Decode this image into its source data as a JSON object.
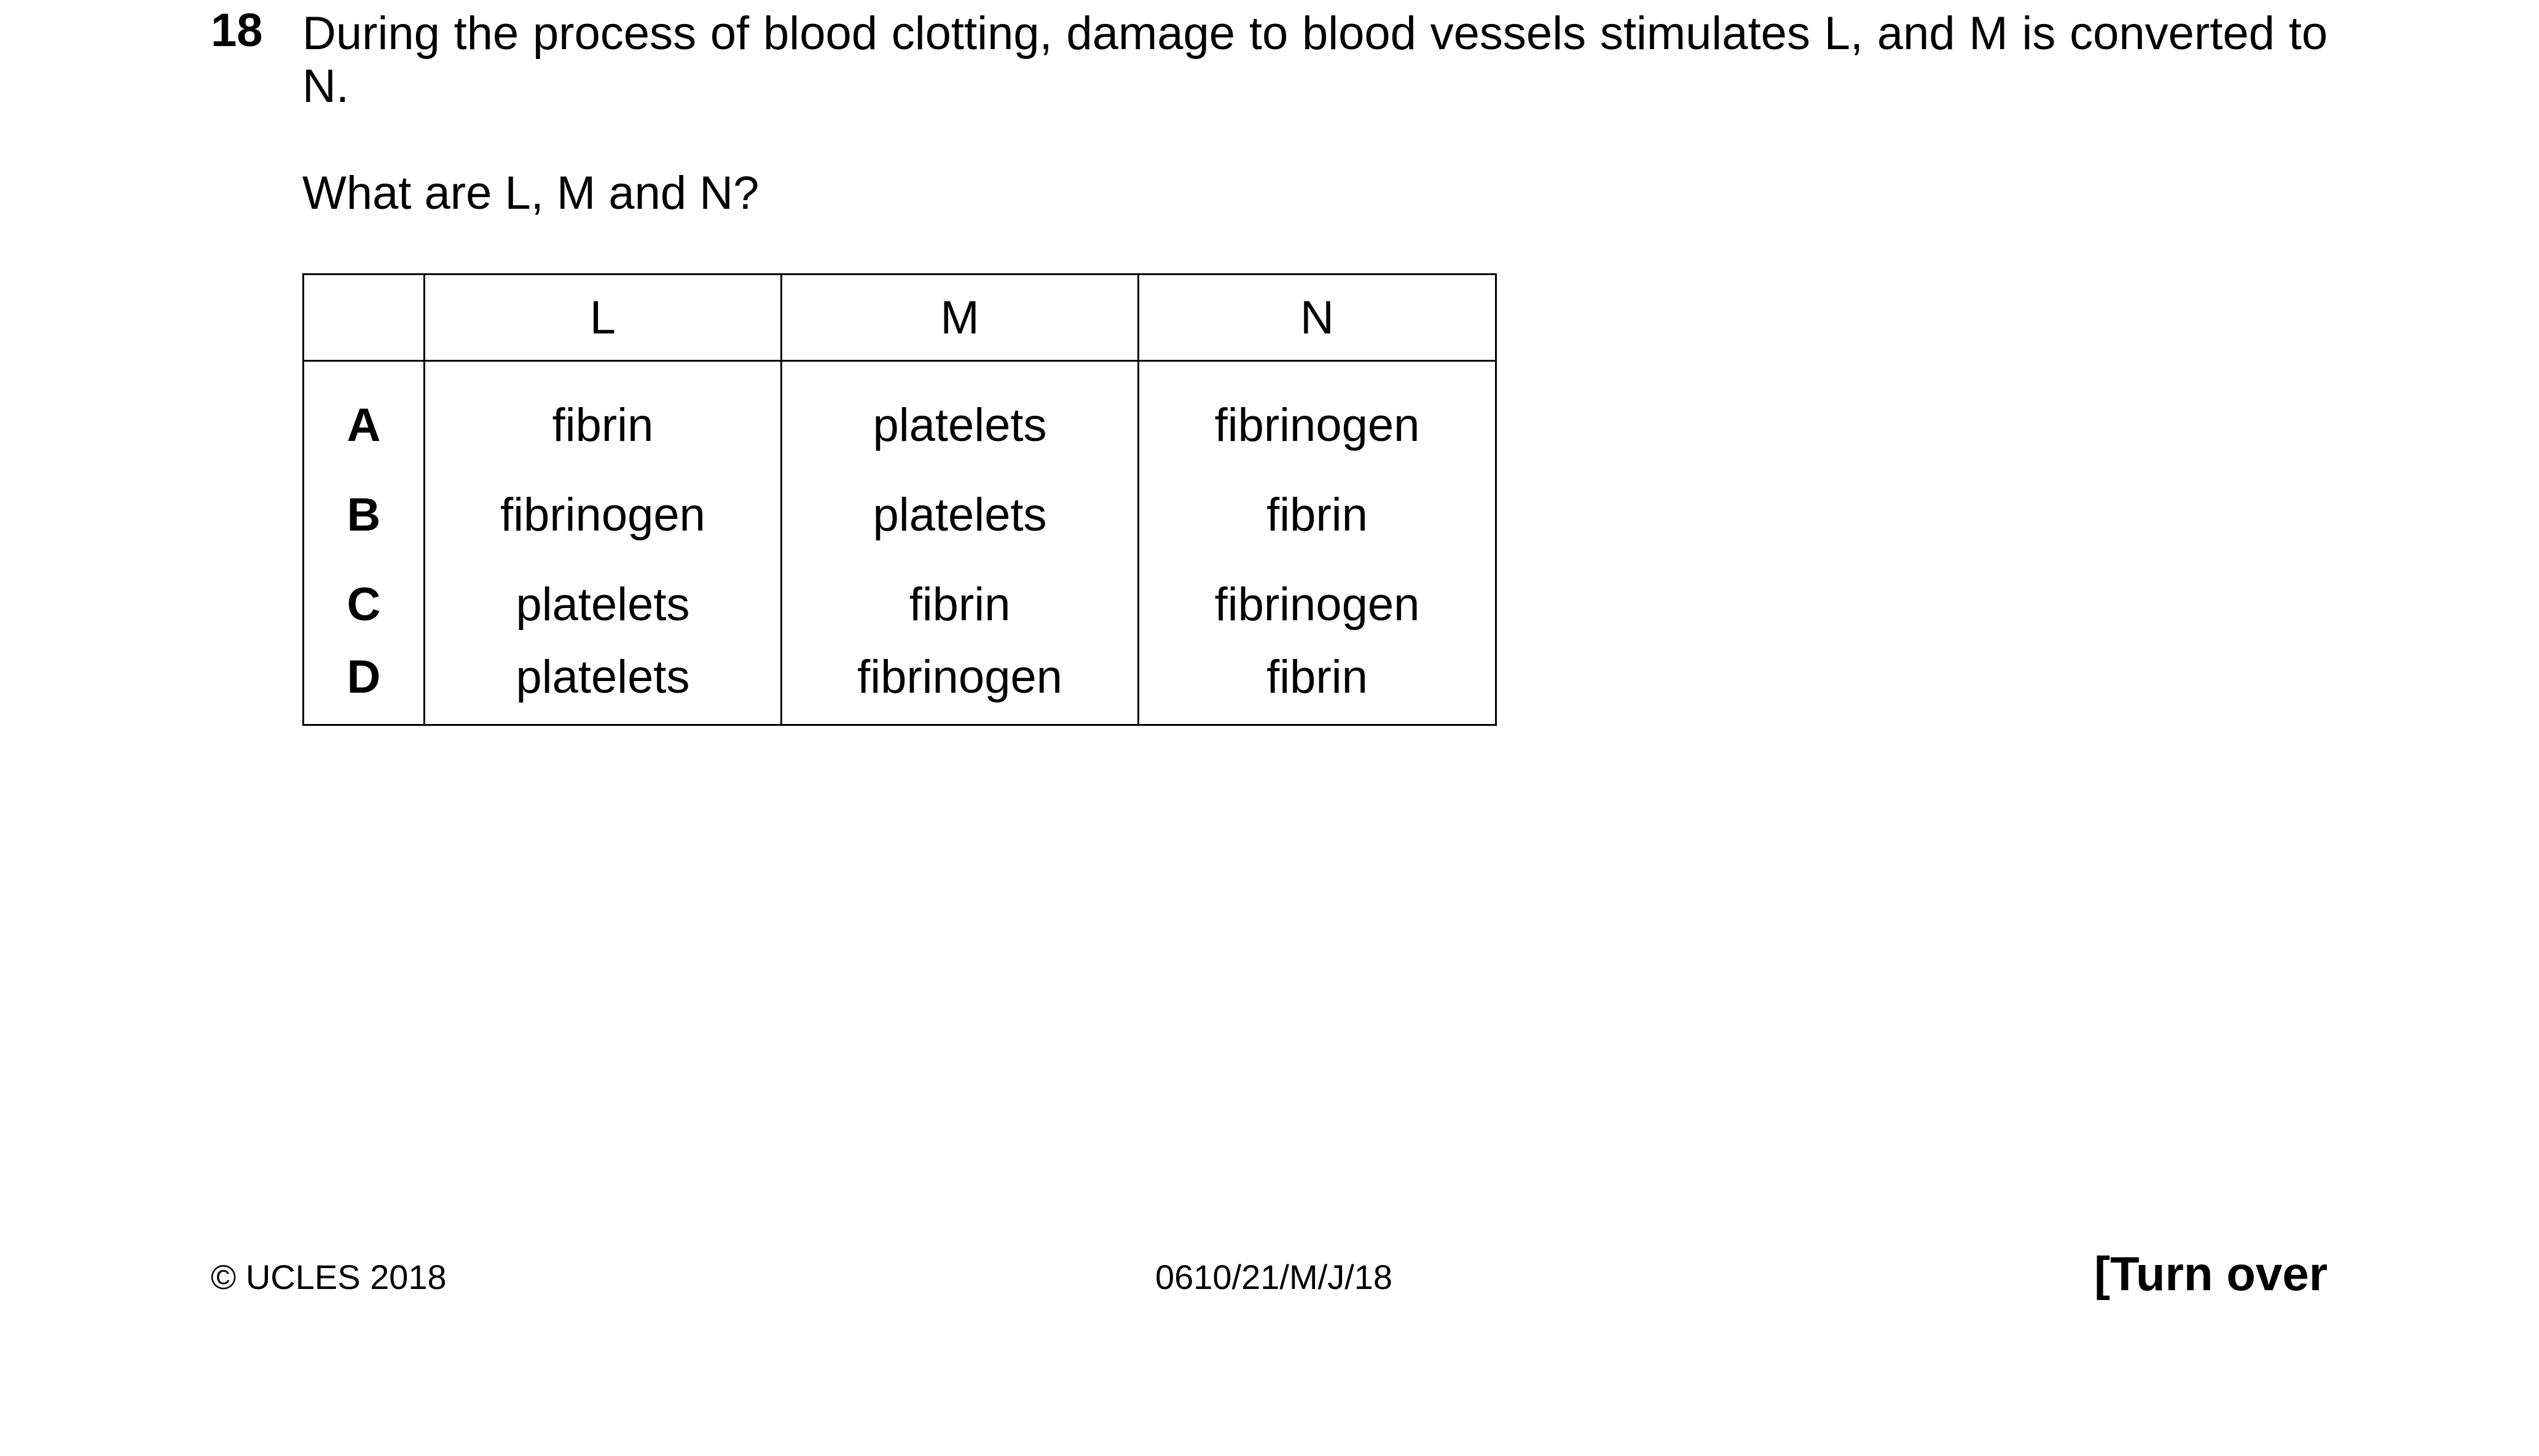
{
  "question": {
    "number": "18",
    "stem": "During the process of blood clotting, damage to blood vessels stimulates L, and M is converted to N.",
    "prompt": "What are L, M and N?"
  },
  "table": {
    "headers": [
      "",
      "L",
      "M",
      "N"
    ],
    "rows": [
      {
        "key": "A",
        "L": "fibrin",
        "M": "platelets",
        "N": "fibrinogen"
      },
      {
        "key": "B",
        "L": "fibrinogen",
        "M": "platelets",
        "N": "fibrin"
      },
      {
        "key": "C",
        "L": "platelets",
        "M": "fibrin",
        "N": "fibrinogen"
      },
      {
        "key": "D",
        "L": "platelets",
        "M": "fibrinogen",
        "N": "fibrin"
      }
    ]
  },
  "footer": {
    "copyright": "© UCLES 2018",
    "paper_code": "0610/21/M/J/18",
    "turn_over": "[Turn over"
  }
}
